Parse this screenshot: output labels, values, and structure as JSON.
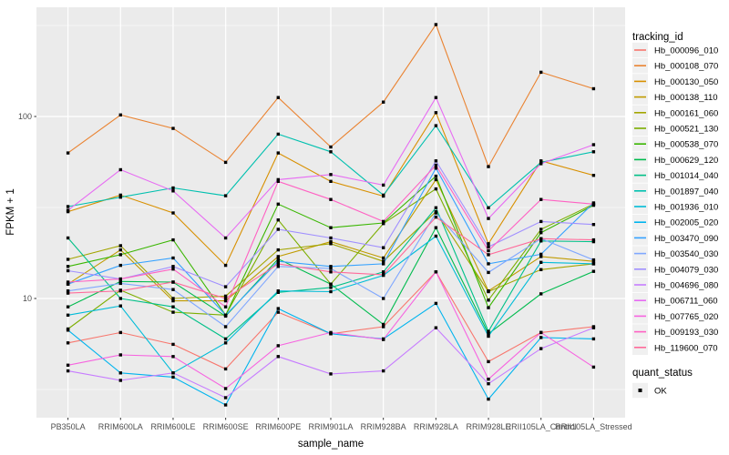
{
  "chart_data": {
    "type": "line",
    "title": "",
    "xlabel": "sample_name",
    "ylabel": "FPKM + 1",
    "y_scale": "log10",
    "y_major_ticks": [
      10,
      100
    ],
    "y_minor_ticks": [
      3.162,
      31.62,
      316.2
    ],
    "grid": "on",
    "panel_bg": "#EBEBEB",
    "grid_color": "#FFFFFF",
    "axis_text_color": "#4d4d4d",
    "point_shape": "filled-square",
    "point_color": "#000000",
    "categories": [
      "PB350LA",
      "RRIM600LA",
      "RRIM600LE",
      "RRIM600SE",
      "RRIM600PE",
      "RRIM901LA",
      "RRIM928BA",
      "RRIM928LA",
      "RRIM928LE",
      "RRII105LA_Control",
      "RRII105LA_Stressed"
    ],
    "series": [
      {
        "name": "Hb_000096_010",
        "color": "#F8766D",
        "values": [
          5.7,
          6.5,
          5.6,
          4.1,
          8.4,
          6.4,
          7.0,
          14.0,
          4.5,
          6.5,
          7.0
        ]
      },
      {
        "name": "Hb_000108_070",
        "color": "#EA8331",
        "values": [
          63,
          102,
          86,
          56,
          127,
          68,
          120,
          320,
          53,
          175,
          142
        ]
      },
      {
        "name": "Hb_000130_050",
        "color": "#D89000",
        "values": [
          30,
          37,
          29.5,
          15.2,
          63,
          44,
          36.5,
          105,
          20,
          57,
          47.5
        ]
      },
      {
        "name": "Hb_000138_110",
        "color": "#C09B00",
        "values": [
          12,
          18.5,
          9.7,
          9.7,
          17,
          20.5,
          16.7,
          45,
          11,
          17,
          16
        ]
      },
      {
        "name": "Hb_000161_060",
        "color": "#A3A500",
        "values": [
          16.4,
          19.5,
          10,
          10.3,
          18.5,
          20,
          16,
          30,
          10.9,
          14.4,
          15.5
        ]
      },
      {
        "name": "Hb_000521_130",
        "color": "#7CAE00",
        "values": [
          6.8,
          11.1,
          8.4,
          8.1,
          27,
          12,
          25.8,
          40,
          9.8,
          24,
          33
        ]
      },
      {
        "name": "Hb_000538_070",
        "color": "#39B600",
        "values": [
          15,
          17.4,
          21,
          8.1,
          33,
          24.5,
          26,
          47,
          8.9,
          23,
          32.5
        ]
      },
      {
        "name": "Hb_000629_120",
        "color": "#00BB4E",
        "values": [
          9.0,
          12.4,
          12.3,
          8.0,
          16.5,
          12.0,
          7.2,
          24.5,
          6.4,
          10.6,
          14.1
        ]
      },
      {
        "name": "Hb_001014_040",
        "color": "#00C087",
        "values": [
          21.5,
          10.0,
          9.0,
          6.0,
          10.8,
          11.5,
          14.0,
          31.5,
          6.6,
          20.7,
          20.5
        ]
      },
      {
        "name": "Hb_001897_040",
        "color": "#00C0AF",
        "values": [
          32,
          36,
          40.5,
          36.7,
          80,
          64,
          37,
          89,
          31.5,
          56,
          64
        ]
      },
      {
        "name": "Hb_001936_010",
        "color": "#00BCD8",
        "values": [
          8.1,
          9.1,
          3.9,
          5.7,
          11,
          10.9,
          13.4,
          22,
          6.2,
          15.8,
          15.5
        ]
      },
      {
        "name": "Hb_002005_020",
        "color": "#00B4EE",
        "values": [
          6.7,
          3.9,
          3.7,
          2.6,
          8.8,
          6.4,
          6.0,
          9.4,
          2.8,
          6.1,
          6.0
        ]
      },
      {
        "name": "Hb_003470_090",
        "color": "#35A2FF",
        "values": [
          12.0,
          15.2,
          16.7,
          8.1,
          16.0,
          15.0,
          15.5,
          52,
          15.5,
          17.5,
          33.5
        ]
      },
      {
        "name": "Hb_003540_030",
        "color": "#7FA7FF",
        "values": [
          11.0,
          12.1,
          11.2,
          7.0,
          15.0,
          14.6,
          10.0,
          29.5,
          13.9,
          21.3,
          16.3
        ]
      },
      {
        "name": "Hb_004079_030",
        "color": "#A08FFF",
        "values": [
          14.2,
          12.8,
          15.0,
          11.6,
          24,
          21.5,
          19.0,
          57,
          19.2,
          26.5,
          25.5
        ]
      },
      {
        "name": "Hb_004696_080",
        "color": "#C77CFF",
        "values": [
          4.0,
          3.55,
          3.9,
          2.85,
          4.8,
          3.85,
          4.0,
          6.9,
          3.4,
          5.3,
          6.9
        ]
      },
      {
        "name": "Hb_006711_060",
        "color": "#E76BF3",
        "values": [
          30.5,
          51,
          39,
          21.5,
          45,
          48,
          42,
          127,
          27.5,
          55,
          70
        ]
      },
      {
        "name": "Hb_007765_020",
        "color": "#F763E0",
        "values": [
          4.3,
          4.9,
          4.8,
          3.2,
          5.5,
          6.5,
          5.95,
          14.0,
          3.6,
          6.5,
          4.2
        ]
      },
      {
        "name": "Hb_009193_030",
        "color": "#FF61C3",
        "values": [
          12.3,
          12.8,
          14.5,
          9.0,
          44,
          35,
          26.5,
          54,
          18.3,
          35,
          33
        ]
      },
      {
        "name": "Hb_119600_070",
        "color": "#FF6A9A",
        "values": [
          10.7,
          11.0,
          12.3,
          10.0,
          15.5,
          14.0,
          13.5,
          28,
          17.4,
          21.3,
          21.0
        ]
      }
    ],
    "legend": {
      "title": "tracking_id",
      "quant_title": "quant_status",
      "quant_items": [
        "OK"
      ],
      "key_bg": "#F0F0F0"
    }
  }
}
